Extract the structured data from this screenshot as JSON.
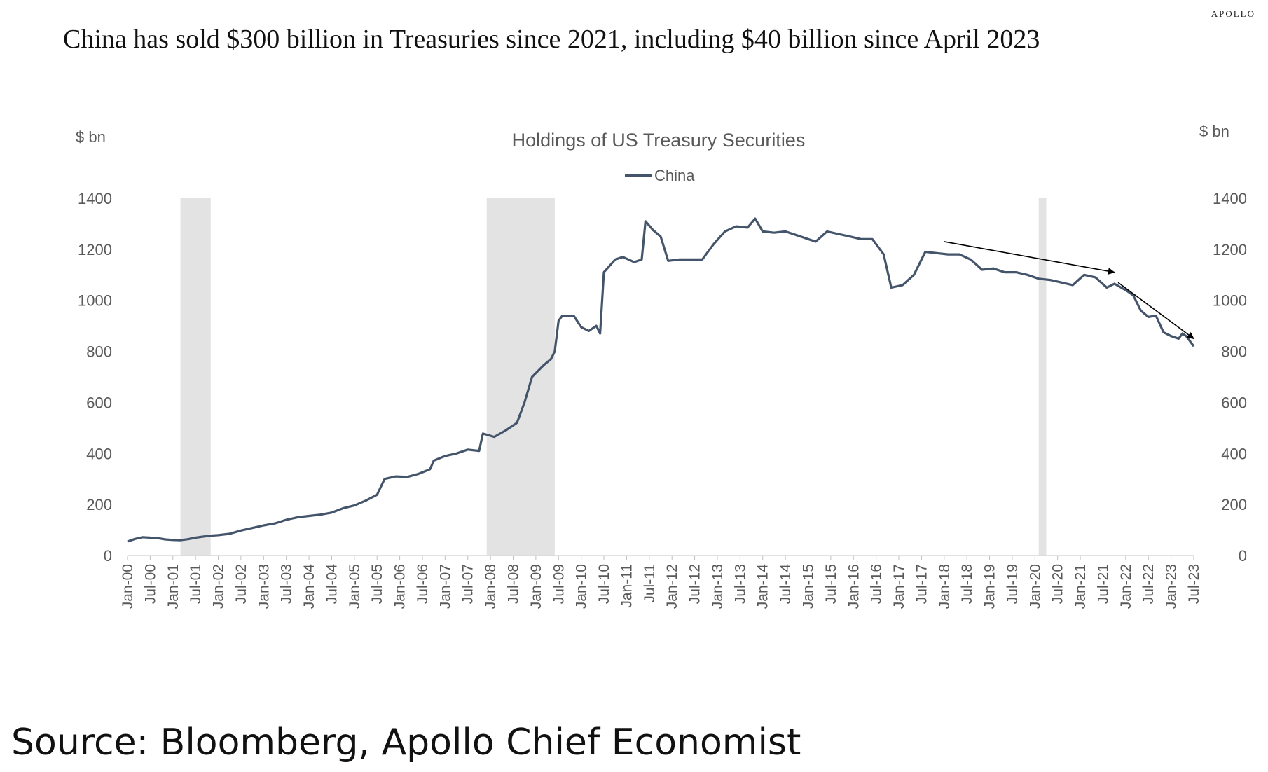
{
  "brand": "APOLLO",
  "headline": "China has sold $300 billion in Treasuries since 2021, including $40 billion since April 2023",
  "source": "Source: Bloomberg, Apollo Chief Economist",
  "chart_data": {
    "type": "line",
    "title": "Holdings of US Treasury Securities",
    "ylabel_left": "$ bn",
    "ylabel_right": "$ bn",
    "ylim": [
      0,
      1400
    ],
    "yticks": [
      0,
      200,
      400,
      600,
      800,
      1000,
      1200,
      1400
    ],
    "xlim": [
      "2000-01",
      "2023-07"
    ],
    "xtick_labels": [
      "Jan-00",
      "Jul-00",
      "Jan-01",
      "Jul-01",
      "Jan-02",
      "Jul-02",
      "Jan-03",
      "Jul-03",
      "Jan-04",
      "Jul-04",
      "Jan-05",
      "Jul-05",
      "Jan-06",
      "Jul-06",
      "Jan-07",
      "Jul-07",
      "Jan-08",
      "Jul-08",
      "Jan-09",
      "Jul-09",
      "Jan-10",
      "Jul-10",
      "Jan-11",
      "Jul-11",
      "Jan-12",
      "Jul-12",
      "Jan-13",
      "Jul-13",
      "Jan-14",
      "Jul-14",
      "Jan-15",
      "Jul-15",
      "Jan-16",
      "Jul-16",
      "Jan-17",
      "Jul-17",
      "Jan-18",
      "Jul-18",
      "Jan-19",
      "Jul-19",
      "Jan-20",
      "Jul-20",
      "Jan-21",
      "Jul-21",
      "Jan-22",
      "Jul-22",
      "Jan-23",
      "Jul-23"
    ],
    "legend": "top-center",
    "grid": false,
    "line_color": "#44546a",
    "recession_shading": [
      {
        "start": "2001-03",
        "end": "2001-11"
      },
      {
        "start": "2007-12",
        "end": "2009-06"
      },
      {
        "start": "2020-02",
        "end": "2020-04"
      }
    ],
    "annotation_arrows": [
      {
        "from": [
          "2018-01",
          1230
        ],
        "to": [
          "2021-10",
          1110
        ]
      },
      {
        "from": [
          "2021-11",
          1070
        ],
        "to": [
          "2023-07",
          850
        ]
      }
    ],
    "series": [
      {
        "name": "China",
        "points": [
          [
            "2000-01",
            55
          ],
          [
            "2000-03",
            65
          ],
          [
            "2000-05",
            72
          ],
          [
            "2000-07",
            70
          ],
          [
            "2000-09",
            68
          ],
          [
            "2000-11",
            63
          ],
          [
            "2001-01",
            61
          ],
          [
            "2001-03",
            60
          ],
          [
            "2001-05",
            64
          ],
          [
            "2001-07",
            70
          ],
          [
            "2001-09",
            74
          ],
          [
            "2001-11",
            78
          ],
          [
            "2002-01",
            80
          ],
          [
            "2002-04",
            85
          ],
          [
            "2002-07",
            98
          ],
          [
            "2002-10",
            108
          ],
          [
            "2003-01",
            118
          ],
          [
            "2003-04",
            126
          ],
          [
            "2003-07",
            140
          ],
          [
            "2003-10",
            150
          ],
          [
            "2004-01",
            155
          ],
          [
            "2004-04",
            160
          ],
          [
            "2004-07",
            168
          ],
          [
            "2004-10",
            185
          ],
          [
            "2005-01",
            196
          ],
          [
            "2005-04",
            215
          ],
          [
            "2005-07",
            238
          ],
          [
            "2005-09",
            300
          ],
          [
            "2005-12",
            310
          ],
          [
            "2006-03",
            308
          ],
          [
            "2006-06",
            320
          ],
          [
            "2006-09",
            338
          ],
          [
            "2006-10",
            372
          ],
          [
            "2007-01",
            390
          ],
          [
            "2007-04",
            400
          ],
          [
            "2007-07",
            415
          ],
          [
            "2007-10",
            410
          ],
          [
            "2007-11",
            478
          ],
          [
            "2008-02",
            465
          ],
          [
            "2008-05",
            490
          ],
          [
            "2008-08",
            520
          ],
          [
            "2008-10",
            600
          ],
          [
            "2008-12",
            700
          ],
          [
            "2009-03",
            745
          ],
          [
            "2009-05",
            770
          ],
          [
            "2009-06",
            800
          ],
          [
            "2009-07",
            920
          ],
          [
            "2009-08",
            940
          ],
          [
            "2009-11",
            940
          ],
          [
            "2010-01",
            895
          ],
          [
            "2010-03",
            880
          ],
          [
            "2010-05",
            900
          ],
          [
            "2010-06",
            870
          ],
          [
            "2010-07",
            1110
          ],
          [
            "2010-10",
            1160
          ],
          [
            "2010-12",
            1170
          ],
          [
            "2011-03",
            1150
          ],
          [
            "2011-05",
            1160
          ],
          [
            "2011-06",
            1310
          ],
          [
            "2011-08",
            1275
          ],
          [
            "2011-10",
            1250
          ],
          [
            "2011-12",
            1155
          ],
          [
            "2012-03",
            1160
          ],
          [
            "2012-06",
            1160
          ],
          [
            "2012-09",
            1160
          ],
          [
            "2012-12",
            1220
          ],
          [
            "2013-03",
            1270
          ],
          [
            "2013-06",
            1290
          ],
          [
            "2013-09",
            1285
          ],
          [
            "2013-11",
            1320
          ],
          [
            "2014-01",
            1270
          ],
          [
            "2014-04",
            1265
          ],
          [
            "2014-07",
            1270
          ],
          [
            "2014-10",
            1255
          ],
          [
            "2015-01",
            1240
          ],
          [
            "2015-03",
            1230
          ],
          [
            "2015-06",
            1270
          ],
          [
            "2015-09",
            1260
          ],
          [
            "2015-12",
            1250
          ],
          [
            "2016-03",
            1240
          ],
          [
            "2016-06",
            1240
          ],
          [
            "2016-09",
            1180
          ],
          [
            "2016-11",
            1050
          ],
          [
            "2017-02",
            1060
          ],
          [
            "2017-05",
            1100
          ],
          [
            "2017-08",
            1190
          ],
          [
            "2017-11",
            1185
          ],
          [
            "2018-02",
            1180
          ],
          [
            "2018-05",
            1180
          ],
          [
            "2018-08",
            1160
          ],
          [
            "2018-11",
            1120
          ],
          [
            "2019-02",
            1125
          ],
          [
            "2019-05",
            1110
          ],
          [
            "2019-08",
            1110
          ],
          [
            "2019-11",
            1100
          ],
          [
            "2020-02",
            1085
          ],
          [
            "2020-05",
            1080
          ],
          [
            "2020-08",
            1070
          ],
          [
            "2020-11",
            1060
          ],
          [
            "2021-02",
            1100
          ],
          [
            "2021-05",
            1090
          ],
          [
            "2021-08",
            1050
          ],
          [
            "2021-10",
            1065
          ],
          [
            "2022-01",
            1040
          ],
          [
            "2022-03",
            1020
          ],
          [
            "2022-05",
            960
          ],
          [
            "2022-07",
            935
          ],
          [
            "2022-09",
            940
          ],
          [
            "2022-11",
            875
          ],
          [
            "2023-01",
            860
          ],
          [
            "2023-03",
            850
          ],
          [
            "2023-04",
            870
          ],
          [
            "2023-05",
            860
          ],
          [
            "2023-07",
            820
          ]
        ]
      }
    ]
  }
}
